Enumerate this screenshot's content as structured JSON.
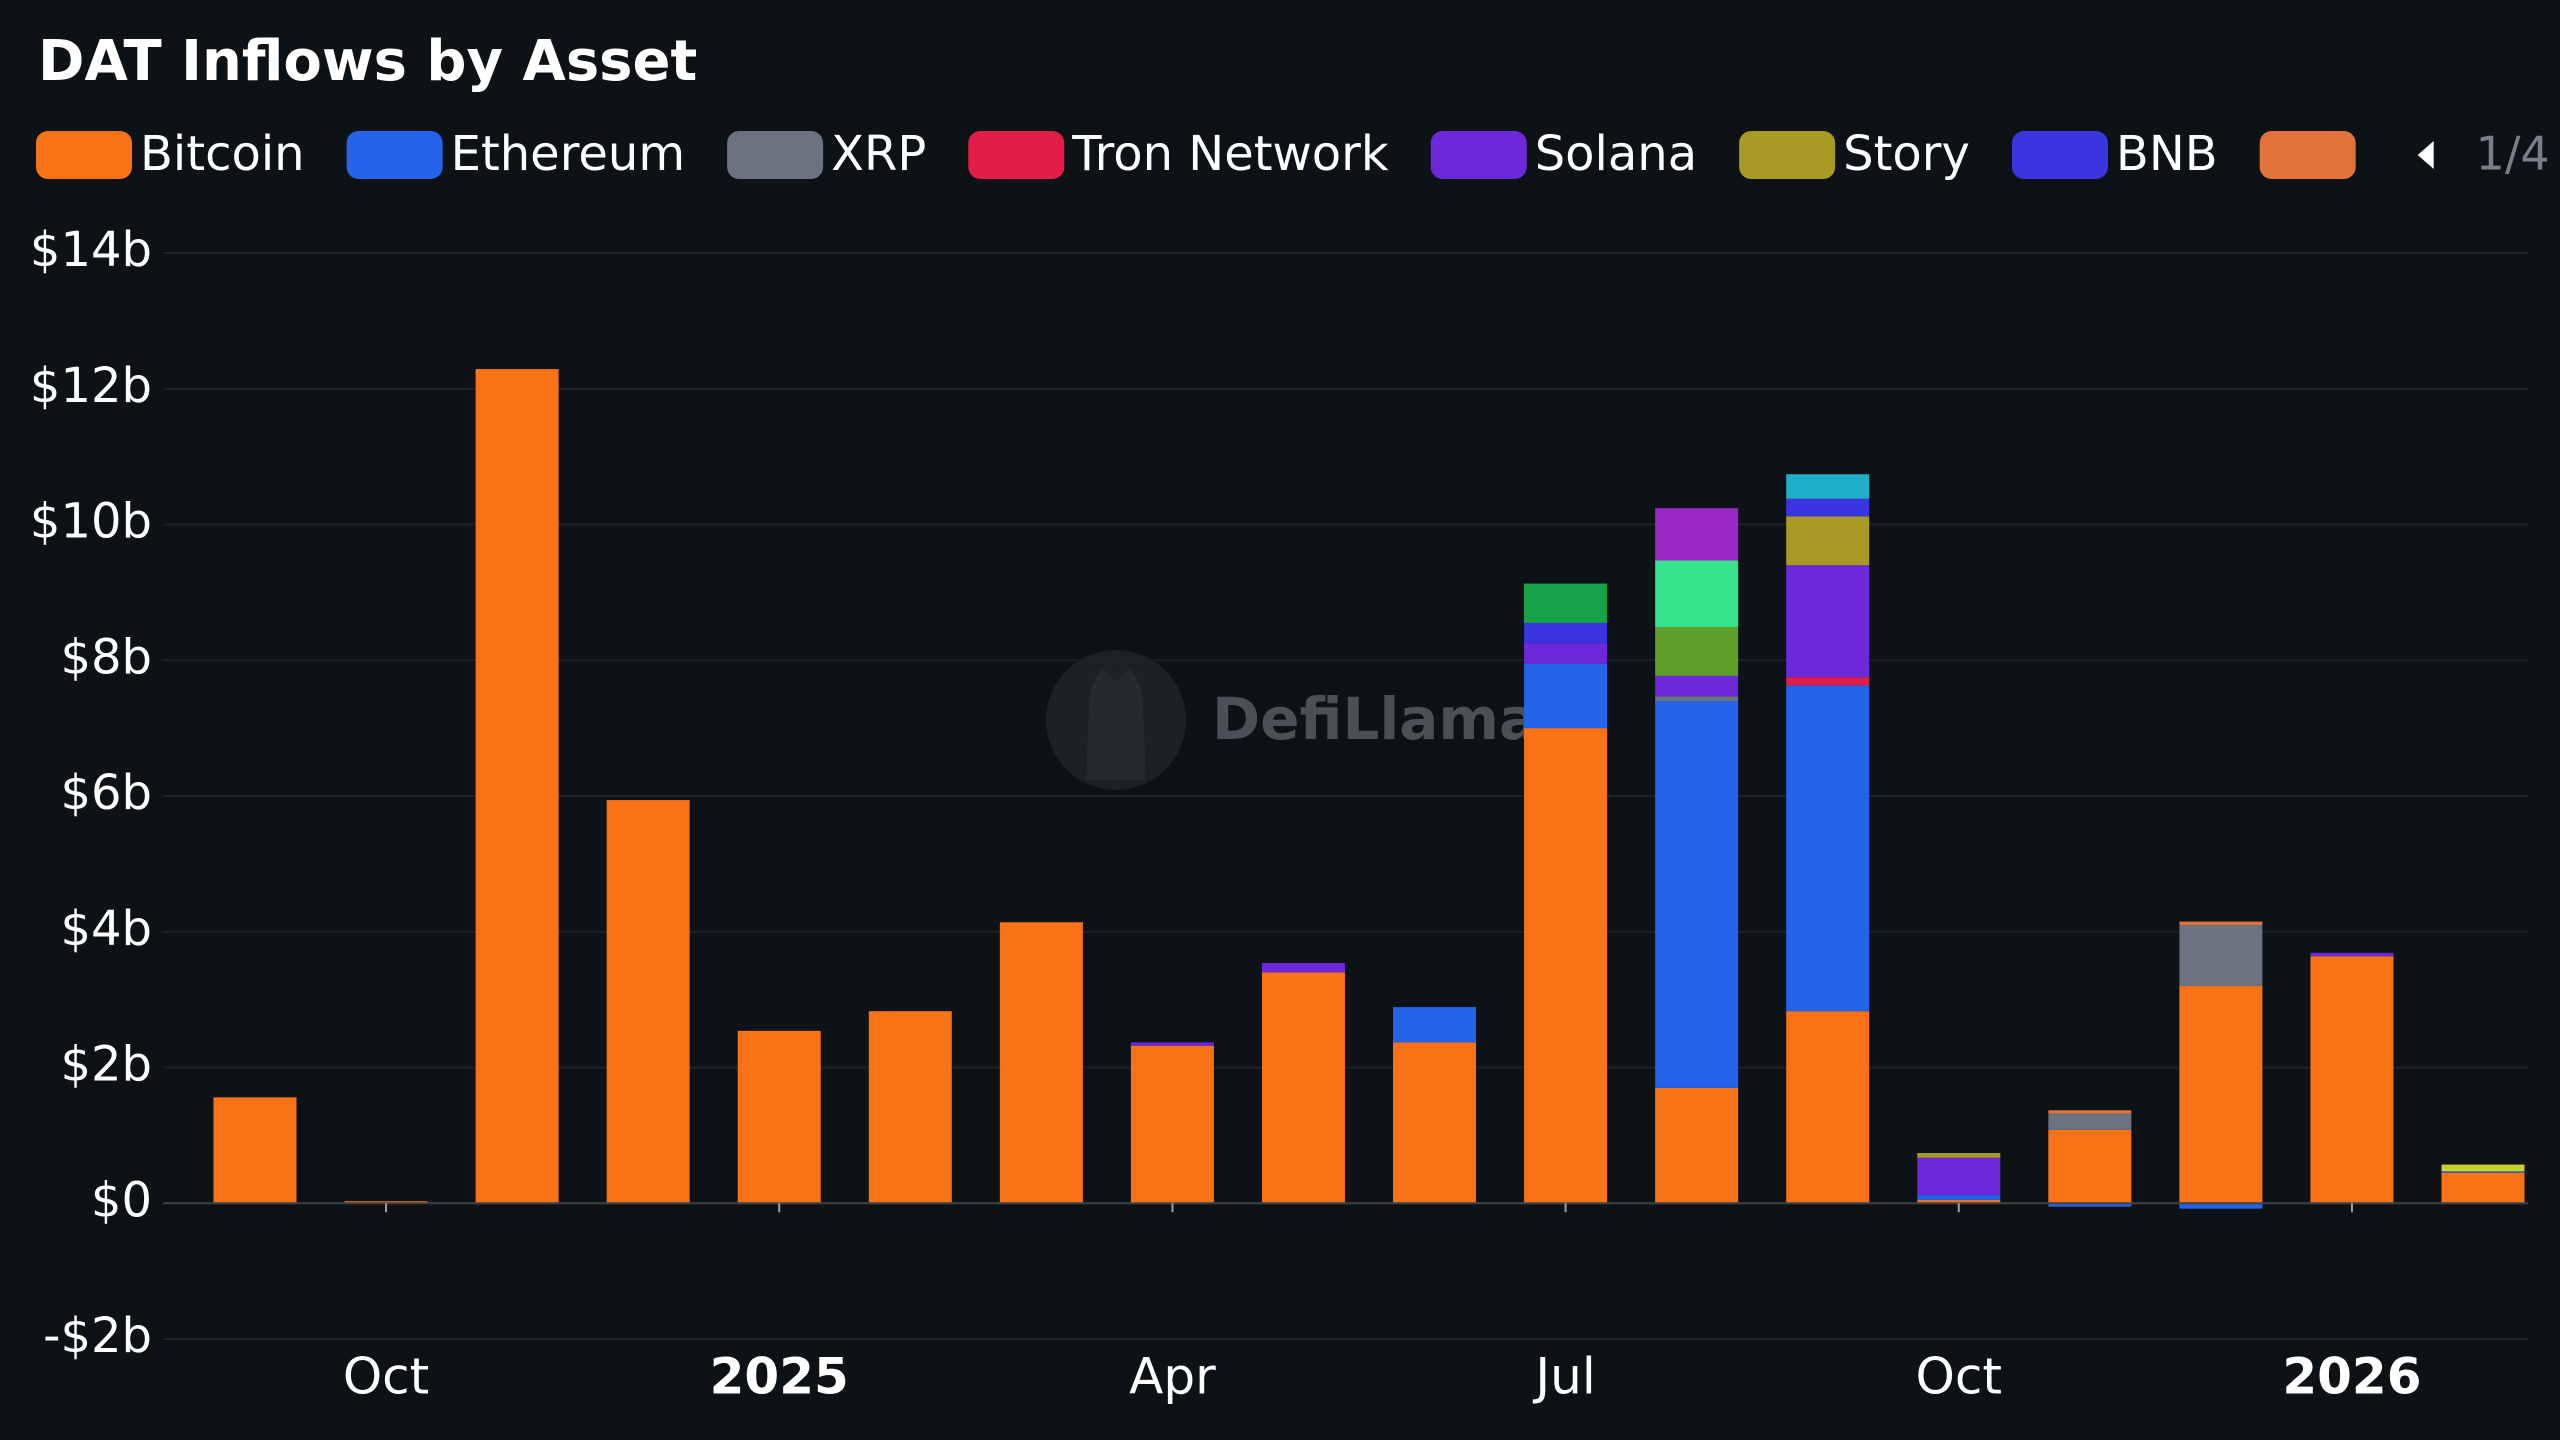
{
  "chart_data": {
    "type": "stacked_bar",
    "title": "DAT Inflows by Asset",
    "watermark": "DefiLlama",
    "legend_page": "1/4",
    "categories": [
      null,
      "Oct",
      null,
      null,
      "2025",
      null,
      null,
      "Apr",
      null,
      null,
      "Jul",
      null,
      null,
      "Oct",
      null,
      null,
      "2026",
      null
    ],
    "ylim": [
      -2,
      14
    ],
    "yticks": [
      {
        "value": -2,
        "label": "-$2b"
      },
      {
        "value": 0,
        "label": "$0"
      },
      {
        "value": 2,
        "label": "$2b"
      },
      {
        "value": 4,
        "label": "$4b"
      },
      {
        "value": 6,
        "label": "$6b"
      },
      {
        "value": 8,
        "label": "$8b"
      },
      {
        "value": 10,
        "label": "$10b"
      },
      {
        "value": 12,
        "label": "$12b"
      },
      {
        "value": 14,
        "label": "$14b"
      }
    ],
    "grid": true,
    "series": [
      {
        "name": "Bitcoin",
        "color": "#f97316",
        "values": [
          1.56,
          0.03,
          12.29,
          5.94,
          2.54,
          2.83,
          4.14,
          2.32,
          3.4,
          2.37,
          7.0,
          1.7,
          2.83,
          0.05,
          1.08,
          3.2,
          3.64,
          0.45
        ]
      },
      {
        "name": "Ethereum",
        "color": "#2563eb",
        "values": [
          0,
          0,
          0,
          0,
          0,
          0,
          0,
          0,
          0,
          0.52,
          0.95,
          5.7,
          4.8,
          0.07,
          -0.05,
          -0.08,
          0,
          0.02
        ]
      },
      {
        "name": "XRP",
        "color": "#6b7280",
        "values": [
          0,
          0,
          0,
          0,
          0,
          0,
          0,
          0,
          0,
          0,
          0,
          0.07,
          0,
          0,
          0.24,
          0.9,
          0,
          0
        ]
      },
      {
        "name": "Tron Network",
        "color": "#e11d48",
        "values": [
          0,
          0,
          0,
          0,
          0,
          0,
          0,
          0,
          0,
          0,
          0,
          0,
          0.12,
          0,
          0,
          0,
          0,
          0
        ]
      },
      {
        "name": "Solana",
        "color": "#6d28d9",
        "values": [
          0,
          0,
          0,
          0,
          0,
          0,
          0,
          0.05,
          0.14,
          0,
          0.3,
          0.3,
          1.65,
          0.55,
          0,
          0,
          0.05,
          0
        ]
      },
      {
        "name": "Story",
        "color": "#a89a24",
        "values": [
          0,
          0,
          0,
          0,
          0,
          0,
          0,
          0,
          0,
          0,
          0,
          0,
          0.72,
          0.07,
          0,
          0,
          0,
          0
        ]
      },
      {
        "name": "BNB",
        "color": "#3b35e0",
        "values": [
          0,
          0,
          0,
          0,
          0,
          0,
          0,
          0,
          0,
          0,
          0.3,
          0,
          0.26,
          0,
          0,
          0,
          0,
          0
        ]
      },
      {
        "color": "#e2733a",
        "values": [
          0,
          0,
          0,
          0,
          0,
          0,
          0,
          0,
          0,
          0,
          0,
          0,
          0,
          0,
          0.05,
          0.05,
          0,
          0
        ]
      },
      {
        "color": "#5f9e2b",
        "values": [
          0,
          0,
          0,
          0,
          0,
          0,
          0,
          0,
          0,
          0,
          0,
          0.72,
          0,
          0,
          0,
          0,
          0,
          0
        ]
      },
      {
        "color": "#34e38c",
        "values": [
          0,
          0,
          0,
          0,
          0,
          0,
          0,
          0,
          0,
          0,
          0,
          0.98,
          0,
          0,
          0,
          0,
          0,
          0
        ]
      },
      {
        "color": "#9b27c4",
        "values": [
          0,
          0,
          0,
          0,
          0,
          0,
          0,
          0,
          0,
          0,
          0,
          0.77,
          0,
          0,
          0,
          0,
          0,
          0
        ]
      },
      {
        "color": "#16a34a",
        "values": [
          0,
          0,
          0,
          0,
          0,
          0,
          0,
          0,
          0,
          0,
          0.58,
          0,
          0,
          0,
          0,
          0,
          0,
          0
        ]
      },
      {
        "color": "#1eb0c8",
        "values": [
          0,
          0,
          0,
          0,
          0,
          0,
          0,
          0,
          0,
          0,
          0,
          0,
          0.36,
          0,
          0,
          0,
          0,
          0
        ]
      },
      {
        "color": "#c9d22a",
        "values": [
          0,
          0,
          0,
          0,
          0,
          0,
          0,
          0,
          0,
          0,
          0,
          0,
          0,
          0,
          0,
          0,
          0,
          0.1
        ]
      }
    ]
  }
}
